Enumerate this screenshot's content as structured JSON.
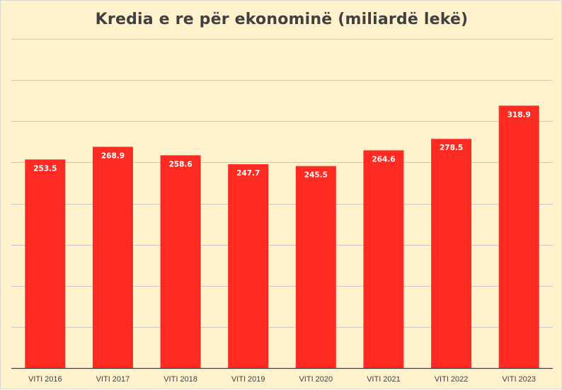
{
  "title": "Kredia e re për ekonominë (miliardë lekë)",
  "colors": {
    "background": "#fff2cc",
    "bar": "#ff2a22",
    "grid": "#c8c8c8",
    "axis": "#404040",
    "label": "#ffffff"
  },
  "chart_data": {
    "type": "bar",
    "title": "Kredia e re për ekonominë (miliardë lekë)",
    "xlabel": "",
    "ylabel": "",
    "categories": [
      "VITI 2016",
      "VITI 2017",
      "VITI 2018",
      "VITI 2019",
      "VITI 2020",
      "VITI 2021",
      "VITI 2022",
      "VITI 2023"
    ],
    "values": [
      253.5,
      268.9,
      258.6,
      247.7,
      245.5,
      264.6,
      278.5,
      318.9
    ],
    "ylim": [
      0,
      400
    ],
    "grid": true,
    "legend": "none",
    "data_labels": true
  }
}
